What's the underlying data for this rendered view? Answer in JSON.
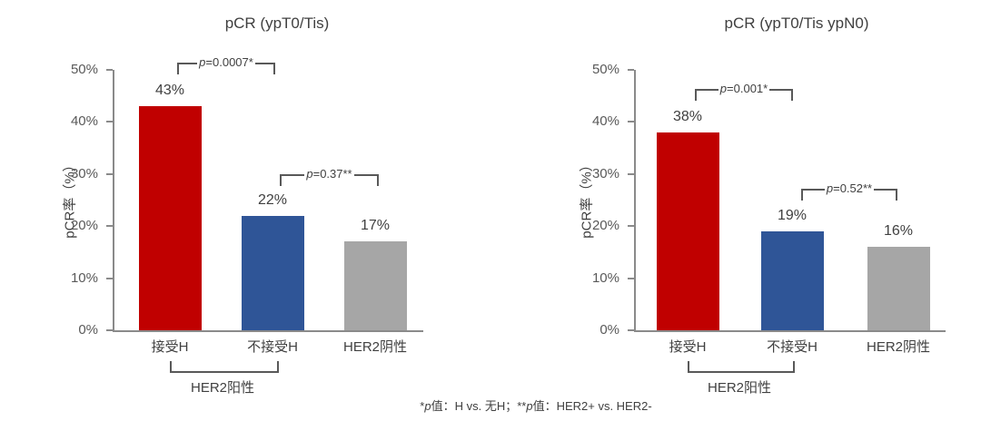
{
  "figure": {
    "footnote": "*p值：H vs. 无H；**p值：HER2+ vs. HER2-",
    "colors": {
      "bar_received_h": "#C00000",
      "bar_no_h": "#2F5597",
      "bar_her2_negative": "#A6A6A6",
      "axis": "#8a8a8a",
      "bracket": "#595959",
      "text": "#404040",
      "tick_text": "#595959"
    }
  },
  "chart_data": [
    {
      "type": "bar",
      "title": "pCR (ypT0/Tis)",
      "ylabel": "pCR率（%）",
      "xlabel": "",
      "ylim": [
        0,
        50
      ],
      "yticks": [
        0,
        10,
        20,
        30,
        40,
        50
      ],
      "ytick_labels": [
        "0%",
        "10%",
        "20%",
        "30%",
        "40%",
        "50%"
      ],
      "grid": false,
      "legend": null,
      "categories": [
        "接受H",
        "不接受H",
        "HER2阴性"
      ],
      "values": [
        43,
        22,
        17
      ],
      "bar_labels": [
        "43%",
        "22%",
        "17%"
      ],
      "bar_colors": [
        "#C00000",
        "#2F5597",
        "#A6A6A6"
      ],
      "significance": [
        {
          "between": [
            "接受H",
            "不接受H"
          ],
          "label": "p=0.0007*"
        },
        {
          "between": [
            "不接受H",
            "HER2阴性"
          ],
          "label": "p=0.37**"
        }
      ],
      "group_bracket": {
        "categories": [
          "接受H",
          "不接受H"
        ],
        "label": "HER2阳性"
      }
    },
    {
      "type": "bar",
      "title": "pCR (ypT0/Tis ypN0)",
      "ylabel": "pCR率（%）",
      "xlabel": "",
      "ylim": [
        0,
        50
      ],
      "yticks": [
        0,
        10,
        20,
        30,
        40,
        50
      ],
      "ytick_labels": [
        "0%",
        "10%",
        "20%",
        "30%",
        "40%",
        "50%"
      ],
      "grid": false,
      "legend": null,
      "categories": [
        "接受H",
        "不接受H",
        "HER2阴性"
      ],
      "values": [
        38,
        19,
        16
      ],
      "bar_labels": [
        "38%",
        "19%",
        "16%"
      ],
      "bar_colors": [
        "#C00000",
        "#2F5597",
        "#A6A6A6"
      ],
      "significance": [
        {
          "between": [
            "接受H",
            "不接受H"
          ],
          "label": "p=0.001*"
        },
        {
          "between": [
            "不接受H",
            "HER2阴性"
          ],
          "label": "p=0.52**"
        }
      ],
      "group_bracket": {
        "categories": [
          "接受H",
          "不接受H"
        ],
        "label": "HER2阳性"
      }
    }
  ]
}
